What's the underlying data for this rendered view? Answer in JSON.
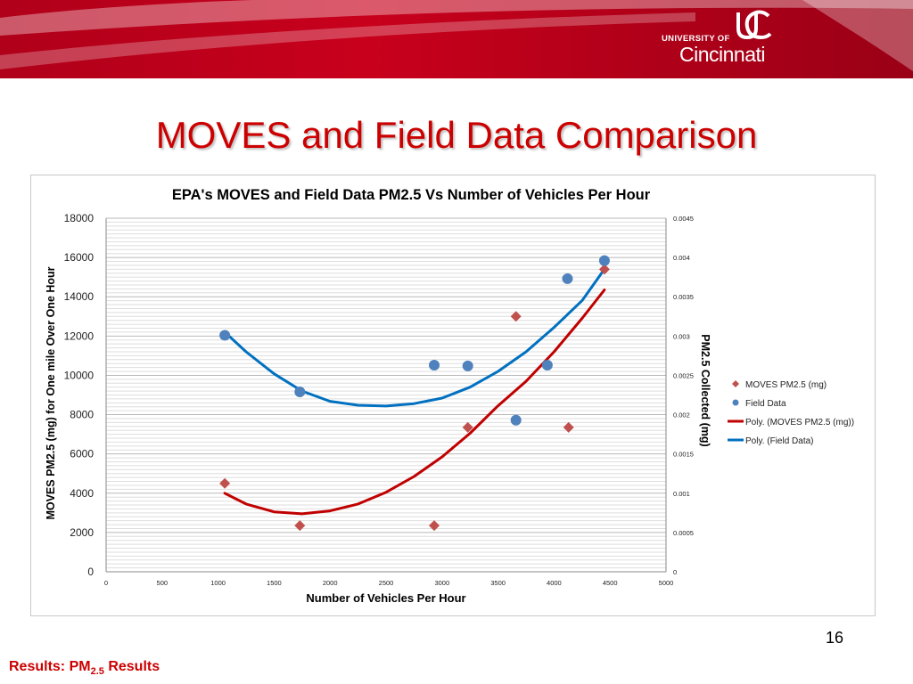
{
  "header": {
    "university_top": "UNIVERSITY OF",
    "university_name": "Cincinnati"
  },
  "slide": {
    "title": "MOVES and Field Data Comparison",
    "page_number": "16",
    "footer_prefix": "Results: PM",
    "footer_sub": "2.5",
    "footer_suffix": " Results"
  },
  "colors": {
    "brand_red": "#cc0000",
    "moves_series": "#c0504d",
    "field_series": "#4f81bd",
    "moves_trend": "#c00000",
    "field_trend": "#0070c0"
  },
  "chart_data": {
    "type": "scatter",
    "title": "EPA's MOVES and Field Data PM2.5 Vs Number of Vehicles Per Hour",
    "xlabel": "Number of Vehicles Per Hour",
    "ylabel": "MOVES PM2.5 (mg)  for One mile Over One Hour",
    "y2label": "PM2.5 Collected (mg)",
    "xlim": [
      0,
      5000
    ],
    "ylim": [
      0,
      18000
    ],
    "y2lim": [
      0,
      0.0045
    ],
    "x_ticks": [
      "0",
      "500",
      "1000",
      "1500",
      "2000",
      "2500",
      "3000",
      "3500",
      "4000",
      "4500",
      "5000"
    ],
    "y_ticks": [
      "0",
      "2000",
      "4000",
      "6000",
      "8000",
      "10000",
      "12000",
      "14000",
      "16000",
      "18000"
    ],
    "y2_ticks": [
      "0",
      "0.0005",
      "0.001",
      "0.0015",
      "0.002",
      "0.0025",
      "0.003",
      "0.0035",
      "0.004",
      "0.0045"
    ],
    "grid": true,
    "legend_position": "right",
    "series": [
      {
        "name": "MOVES PM2.5 (mg)",
        "axis": "left",
        "marker": "diamond",
        "x": [
          1060,
          1730,
          2930,
          3230,
          3660,
          4130,
          4450
        ],
        "y": [
          4500,
          2350,
          2350,
          7350,
          13000,
          7350,
          15400
        ]
      },
      {
        "name": "Field Data",
        "axis": "right",
        "marker": "circle",
        "x": [
          1060,
          1730,
          2930,
          3230,
          3660,
          3940,
          4120,
          4450
        ],
        "y": [
          0.00301,
          0.00229,
          0.00263,
          0.00262,
          0.00193,
          0.00263,
          0.00373,
          0.00396
        ]
      }
    ],
    "trendlines": [
      {
        "name": "Poly. (MOVES PM2.5 (mg))",
        "axis": "left",
        "x": [
          1060,
          1250,
          1500,
          1750,
          2000,
          2250,
          2500,
          2750,
          3000,
          3250,
          3500,
          3750,
          4000,
          4250,
          4450
        ],
        "y": [
          4000,
          3450,
          3050,
          2950,
          3100,
          3450,
          4050,
          4850,
          5850,
          7050,
          8450,
          9700,
          11200,
          12900,
          14350
        ]
      },
      {
        "name": "Poly. (Field Data)",
        "axis": "right",
        "x": [
          1060,
          1250,
          1500,
          1750,
          2000,
          2250,
          2500,
          2750,
          3000,
          3250,
          3500,
          3750,
          4000,
          4250,
          4450
        ],
        "y": [
          0.00305,
          0.0028,
          0.00252,
          0.0023,
          0.00217,
          0.00212,
          0.00211,
          0.00214,
          0.00221,
          0.00235,
          0.00255,
          0.0028,
          0.00311,
          0.00345,
          0.00385
        ]
      }
    ]
  }
}
